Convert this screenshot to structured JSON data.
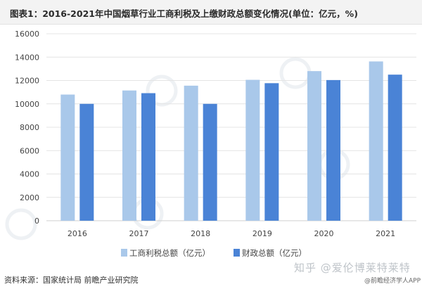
{
  "header": {
    "title": "图表1：2016-2021年中国烟草行业工商利税及上缴财政总额变化情况(单位：亿元，%)"
  },
  "footer": {
    "source": "资料来源：国家统计局 前瞻产业研究院",
    "watermark": "知乎 @爱伦博莱特莱特",
    "app": "@前瞻经济学人APP"
  },
  "colors": {
    "series1": "#a9c8ea",
    "series2": "#4a83d6",
    "grid": "#e4e4e4",
    "text": "#444444"
  },
  "chart_data": {
    "type": "bar",
    "title": "",
    "xlabel": "",
    "ylabel": "",
    "categories": [
      "2016",
      "2017",
      "2018",
      "2019",
      "2020",
      "2021"
    ],
    "series": [
      {
        "name": "工商利税总额（亿元）",
        "values": [
          10795,
          11145,
          11556,
          12056,
          12803,
          13630
        ]
      },
      {
        "name": "财政总额（亿元）",
        "values": [
          10000,
          10915,
          10000,
          11770,
          12037,
          12500
        ]
      }
    ],
    "ylim": [
      0,
      16000
    ],
    "yticks": [
      "0",
      "2000",
      "4000",
      "6000",
      "8000",
      "10000",
      "12000",
      "14000",
      "16000"
    ],
    "grid": true,
    "legend": "bottom-center"
  }
}
